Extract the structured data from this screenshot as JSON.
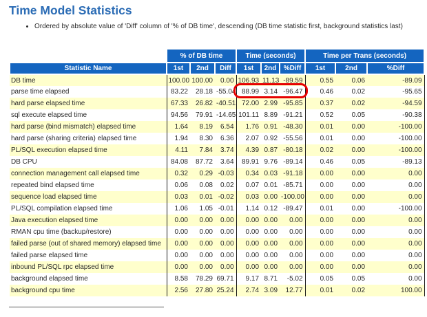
{
  "page": {
    "title": "Time Model Statistics",
    "note": "Ordered by absolute value of 'Diff' column of '% of DB time', descending (DB time statistic first, background statistics last)"
  },
  "table": {
    "group_headers": [
      "% of DB time",
      "Time (seconds)",
      "Time per Trans (seconds)"
    ],
    "columns": [
      "Statistic Name",
      "1st",
      "2nd",
      "Diff",
      "1st",
      "2nd",
      "%Diff",
      "1st",
      "2nd",
      "%Diff"
    ],
    "rows": [
      {
        "name": "DB time",
        "values": [
          "100.00",
          "100.00",
          "0.00",
          "106.93",
          "11.13",
          "-89.59",
          "0.55",
          "0.06",
          "-89.09"
        ]
      },
      {
        "name": "parse time elapsed",
        "values": [
          "83.22",
          "28.18",
          "-55.04",
          "88.99",
          "3.14",
          "-96.47",
          "0.46",
          "0.02",
          "-95.65"
        ]
      },
      {
        "name": "hard parse elapsed time",
        "values": [
          "67.33",
          "26.82",
          "-40.51",
          "72.00",
          "2.99",
          "-95.85",
          "0.37",
          "0.02",
          "-94.59"
        ]
      },
      {
        "name": "sql execute elapsed time",
        "values": [
          "94.56",
          "79.91",
          "-14.65",
          "101.11",
          "8.89",
          "-91.21",
          "0.52",
          "0.05",
          "-90.38"
        ]
      },
      {
        "name": "hard parse (bind mismatch) elapsed time",
        "values": [
          "1.64",
          "8.19",
          "6.54",
          "1.76",
          "0.91",
          "-48.30",
          "0.01",
          "0.00",
          "-100.00"
        ]
      },
      {
        "name": "hard parse (sharing criteria) elapsed time",
        "values": [
          "1.94",
          "8.30",
          "6.36",
          "2.07",
          "0.92",
          "-55.56",
          "0.01",
          "0.00",
          "-100.00"
        ]
      },
      {
        "name": "PL/SQL execution elapsed time",
        "values": [
          "4.11",
          "7.84",
          "3.74",
          "4.39",
          "0.87",
          "-80.18",
          "0.02",
          "0.00",
          "-100.00"
        ]
      },
      {
        "name": "DB CPU",
        "values": [
          "84.08",
          "87.72",
          "3.64",
          "89.91",
          "9.76",
          "-89.14",
          "0.46",
          "0.05",
          "-89.13"
        ]
      },
      {
        "name": "connection management call elapsed time",
        "values": [
          "0.32",
          "0.29",
          "-0.03",
          "0.34",
          "0.03",
          "-91.18",
          "0.00",
          "0.00",
          "0.00"
        ]
      },
      {
        "name": "repeated bind elapsed time",
        "values": [
          "0.06",
          "0.08",
          "0.02",
          "0.07",
          "0.01",
          "-85.71",
          "0.00",
          "0.00",
          "0.00"
        ]
      },
      {
        "name": "sequence load elapsed time",
        "values": [
          "0.03",
          "0.01",
          "-0.02",
          "0.03",
          "0.00",
          "-100.00",
          "0.00",
          "0.00",
          "0.00"
        ]
      },
      {
        "name": "PL/SQL compilation elapsed time",
        "values": [
          "1.06",
          "1.05",
          "-0.01",
          "1.14",
          "0.12",
          "-89.47",
          "0.01",
          "0.00",
          "-100.00"
        ]
      },
      {
        "name": "Java execution elapsed time",
        "values": [
          "0.00",
          "0.00",
          "0.00",
          "0.00",
          "0.00",
          "0.00",
          "0.00",
          "0.00",
          "0.00"
        ]
      },
      {
        "name": "RMAN cpu time (backup/restore)",
        "values": [
          "0.00",
          "0.00",
          "0.00",
          "0.00",
          "0.00",
          "0.00",
          "0.00",
          "0.00",
          "0.00"
        ]
      },
      {
        "name": "failed parse (out of shared memory) elapsed time",
        "values": [
          "0.00",
          "0.00",
          "0.00",
          "0.00",
          "0.00",
          "0.00",
          "0.00",
          "0.00",
          "0.00"
        ]
      },
      {
        "name": "failed parse elapsed time",
        "values": [
          "0.00",
          "0.00",
          "0.00",
          "0.00",
          "0.00",
          "0.00",
          "0.00",
          "0.00",
          "0.00"
        ]
      },
      {
        "name": "inbound PL/SQL rpc elapsed time",
        "values": [
          "0.00",
          "0.00",
          "0.00",
          "0.00",
          "0.00",
          "0.00",
          "0.00",
          "0.00",
          "0.00"
        ]
      },
      {
        "name": "background elapsed time",
        "values": [
          "8.58",
          "78.29",
          "69.71",
          "9.17",
          "8.71",
          "-5.02",
          "0.05",
          "0.05",
          "0.00"
        ]
      },
      {
        "name": "background cpu time",
        "values": [
          "2.56",
          "27.80",
          "25.24",
          "2.74",
          "3.09",
          "12.77",
          "0.01",
          "0.02",
          "100.00"
        ]
      }
    ]
  },
  "highlight": {
    "shape": "red-oval",
    "row": "parse time elapsed",
    "group": "Time (seconds)",
    "values": [
      "88.99",
      "3.14",
      "-96.47"
    ]
  },
  "colors": {
    "title_text": "#2B6CB5",
    "header_bg": "#1465C0",
    "header_text": "#FFFFFF",
    "row_alt_bg": "#FFFFCC",
    "row_bg": "#FFFFFF",
    "grid_line": "#1A1A1A",
    "highlight_border": "#E60000",
    "body_text": "#2B2B2B"
  }
}
